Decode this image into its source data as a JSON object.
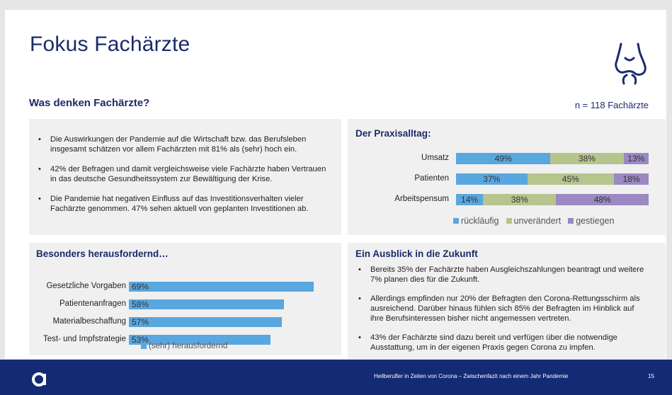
{
  "slide": {
    "title": "Fokus Fachärzte",
    "subtitle": "Was denken Fachärzte?",
    "n_label": "n = 118 Fachärzte"
  },
  "summary": {
    "bullets": [
      "Die Auswirkungen der Pandemie auf die Wirtschaft bzw. das Berufsleben insgesamt schätzen vor allem Fachärzten mit 81% als (sehr) hoch ein.",
      "42% der Befragen und damit vergleichsweise viele Fachärzte haben Vertrauen in das deutsche Gesundheitssystem zur Bewältigung der Krise.",
      "Die Pandemie hat negativen Einfluss auf das Investitionsverhalten vieler Fachärzte genommen. 47% sehen aktuell von geplanten Investitionen ab."
    ]
  },
  "praxis": {
    "title": "Der Praxisalltag:"
  },
  "herausfordernd": {
    "title": "Besonders herausfordernd…"
  },
  "ausblick": {
    "title": "Ein Ausblick in die Zukunft",
    "bullets": [
      "Bereits 35% der Fachärzte haben Ausgleichszahlungen beantragt und weitere 7% planen dies für die Zukunft.",
      "Allerdings empfinden nur 20% der Befragten den Corona-Rettungsschirm als ausreichend. Darüber hinaus fühlen sich 85% der Befragten im Hinblick auf ihre Berufsinteressen bisher nicht angemessen vertreten.",
      "43% der Fachärzte sind dazu bereit und verfügen über die notwendige Ausstattung, um in der eigenen Praxis gegen Corona zu impfen."
    ]
  },
  "footer": {
    "text": "Heilberufler in Zeiten von Corona – Zwischenfazit nach einem Jahr Pandemie",
    "page": "15"
  },
  "icons": {
    "slide_icon": "joint-knee-icon",
    "footer_logo": "brand-logo-icon"
  },
  "chart_data": [
    {
      "type": "bar",
      "stacked": true,
      "orientation": "horizontal",
      "title": "Der Praxisalltag:",
      "categories": [
        "Umsatz",
        "Patienten",
        "Arbeitspensum"
      ],
      "series": [
        {
          "name": "rückläufig",
          "color": "#5aa6df",
          "values": [
            49,
            37,
            14
          ],
          "labels": [
            "49%",
            "37%",
            "14%"
          ]
        },
        {
          "name": "unverändert",
          "color": "#b6c48d",
          "values": [
            38,
            45,
            38
          ],
          "labels": [
            "38%",
            "45%",
            "38%"
          ]
        },
        {
          "name": "gestiegen",
          "color": "#9a89c2",
          "values": [
            13,
            18,
            48
          ],
          "labels": [
            "13%",
            "18%",
            "48%"
          ]
        }
      ],
      "legend": "bottom"
    },
    {
      "type": "bar",
      "orientation": "horizontal",
      "title": "Besonders herausfordernd…",
      "categories": [
        "Gesetzliche Vorgaben",
        "Patientenanfragen",
        "Materialbeschaffung",
        "Test- und Impfstrategie"
      ],
      "series": [
        {
          "name": "(sehr) herausfordernd",
          "color": "#5aa6df",
          "values": [
            69,
            58,
            57,
            53
          ],
          "labels": [
            "69%",
            "58%",
            "57%",
            "53%"
          ]
        }
      ],
      "legend": "bottom"
    }
  ]
}
